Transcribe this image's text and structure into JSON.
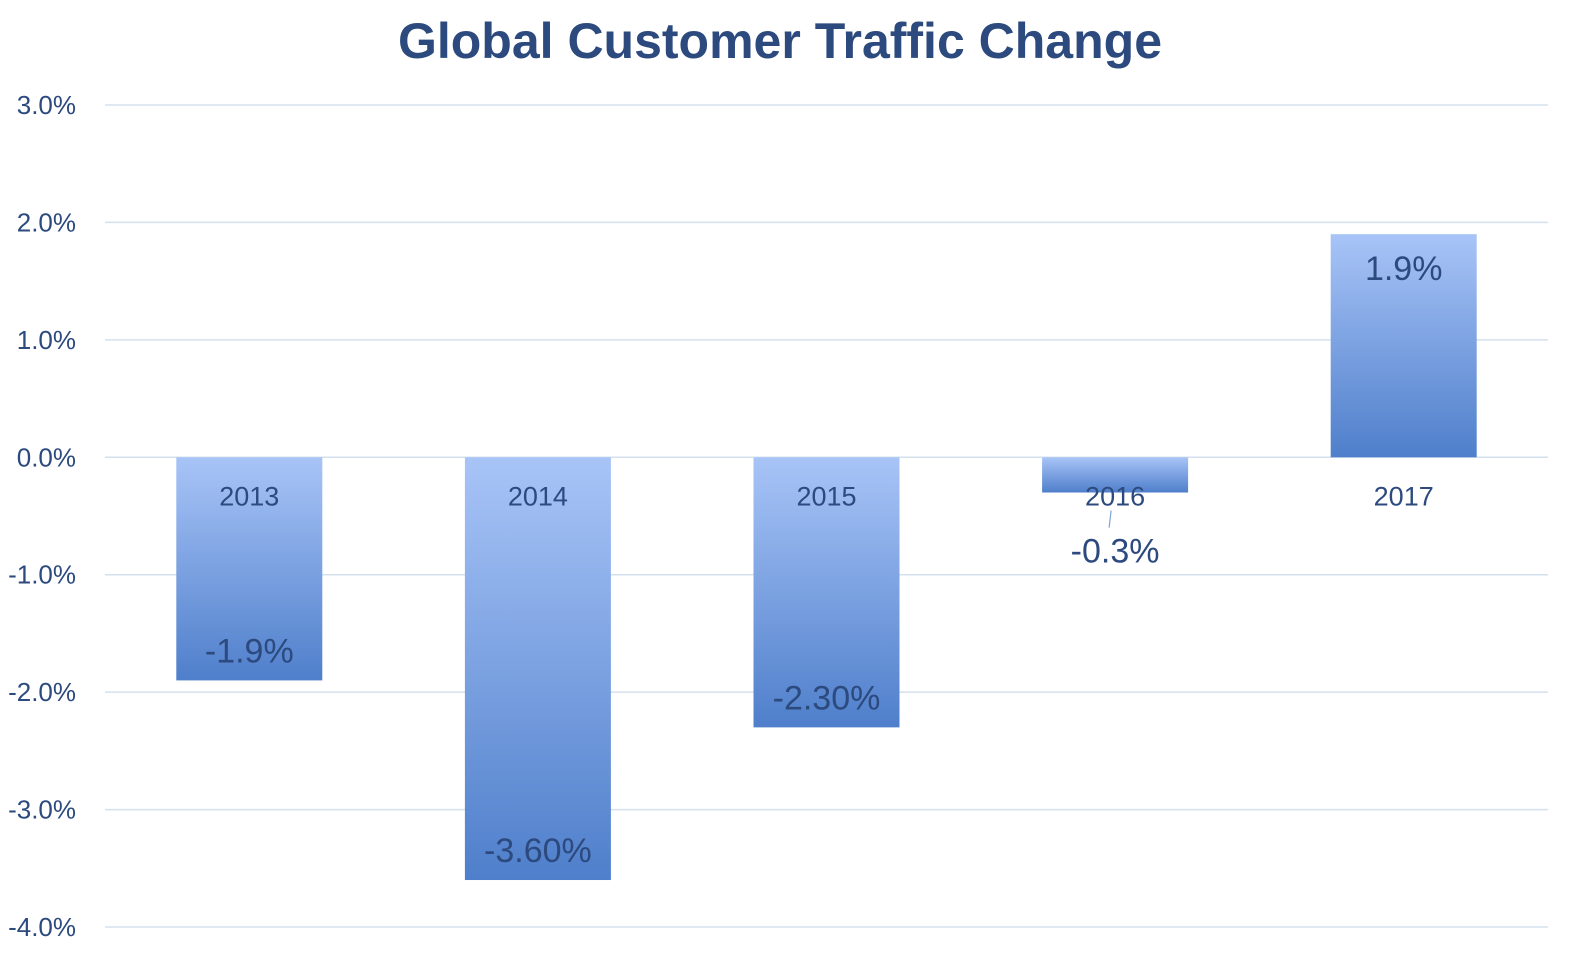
{
  "chart_data": {
    "type": "bar",
    "title": "Global Customer Traffic Change",
    "categories": [
      "2013",
      "2014",
      "2015",
      "2016",
      "2017"
    ],
    "values": [
      -1.9,
      -3.6,
      -2.3,
      -0.3,
      1.9
    ],
    "data_labels": [
      "-1.9%",
      "-3.60%",
      "-2.30%",
      "-0.3%",
      "1.9%"
    ],
    "yticks": [
      "3.0%",
      "2.0%",
      "1.0%",
      "0.0%",
      "-1.0%",
      "-2.0%",
      "-3.0%",
      "-4.0%"
    ],
    "ytick_values": [
      3,
      2,
      1,
      0,
      -1,
      -2,
      -3,
      -4
    ],
    "ylim": [
      -4,
      3
    ],
    "xlabel": "",
    "ylabel": "",
    "grid": true,
    "legend": "none",
    "colors": {
      "bar_top": "#a8c4f7",
      "bar_bottom": "#4f7fcb",
      "text": "#2c4a7e",
      "grid": "#d5e0ee"
    }
  }
}
